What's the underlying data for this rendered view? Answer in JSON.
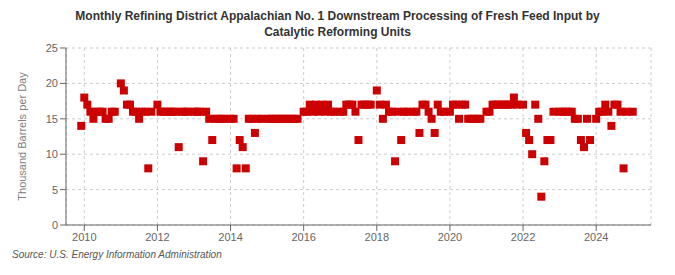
{
  "chart_data": {
    "type": "scatter",
    "title": "Monthly Refining District Appalachian No. 1 Downstream Processing of Fresh Feed Input by\nCatalytic Reforming Units",
    "ylabel": "Thousand Barrels per Day",
    "annotations": [
      "Source: U.S. Energy Information Administration"
    ],
    "color": "#cc0000",
    "marker": "square",
    "grid": true,
    "xlim": [
      2009.5,
      2025.5
    ],
    "xticks": [
      2010,
      2012,
      2014,
      2016,
      2018,
      2020,
      2022,
      2024
    ],
    "ylim": [
      0,
      25
    ],
    "yticks": [
      0,
      5,
      10,
      15,
      20,
      25
    ],
    "x": [
      2009.917,
      2010.0,
      2010.083,
      2010.167,
      2010.25,
      2010.333,
      2010.417,
      2010.5,
      2010.583,
      2010.667,
      2010.75,
      2010.833,
      2011.0,
      2011.083,
      2011.167,
      2011.25,
      2011.333,
      2011.417,
      2011.5,
      2011.583,
      2011.667,
      2011.75,
      2011.833,
      2012.0,
      2012.083,
      2012.167,
      2012.25,
      2012.333,
      2012.417,
      2012.5,
      2012.583,
      2012.667,
      2012.75,
      2012.833,
      2013.0,
      2013.083,
      2013.167,
      2013.25,
      2013.333,
      2013.417,
      2013.5,
      2013.583,
      2013.667,
      2013.75,
      2013.833,
      2014.0,
      2014.083,
      2014.167,
      2014.25,
      2014.333,
      2014.417,
      2014.5,
      2014.583,
      2014.667,
      2014.75,
      2014.833,
      2015.0,
      2015.083,
      2015.167,
      2015.25,
      2015.333,
      2015.417,
      2015.5,
      2015.583,
      2015.667,
      2015.75,
      2015.833,
      2016.0,
      2016.083,
      2016.167,
      2016.25,
      2016.333,
      2016.417,
      2016.5,
      2016.583,
      2016.667,
      2016.75,
      2016.833,
      2017.0,
      2017.083,
      2017.167,
      2017.25,
      2017.333,
      2017.417,
      2017.5,
      2017.583,
      2017.667,
      2017.75,
      2017.833,
      2018.0,
      2018.083,
      2018.167,
      2018.25,
      2018.333,
      2018.417,
      2018.5,
      2018.583,
      2018.667,
      2018.75,
      2018.833,
      2019.0,
      2019.083,
      2019.167,
      2019.25,
      2019.333,
      2019.417,
      2019.5,
      2019.583,
      2019.667,
      2019.75,
      2019.833,
      2020.0,
      2020.083,
      2020.167,
      2020.25,
      2020.333,
      2020.417,
      2020.5,
      2020.583,
      2020.667,
      2020.75,
      2020.833,
      2021.0,
      2021.083,
      2021.167,
      2021.25,
      2021.333,
      2021.417,
      2021.5,
      2021.583,
      2021.667,
      2021.75,
      2021.833,
      2022.0,
      2022.083,
      2022.167,
      2022.25,
      2022.333,
      2022.417,
      2022.5,
      2022.583,
      2022.667,
      2022.75,
      2022.833,
      2023.0,
      2023.083,
      2023.167,
      2023.25,
      2023.333,
      2023.417,
      2023.5,
      2023.583,
      2023.667,
      2023.75,
      2023.833,
      2024.0,
      2024.083,
      2024.167,
      2024.25,
      2024.333,
      2024.417,
      2024.5,
      2024.583,
      2024.667,
      2024.75,
      2024.833,
      2025.0
    ],
    "values": [
      14,
      18,
      17,
      16,
      15,
      16,
      16,
      16,
      15,
      15,
      16,
      16,
      20,
      19,
      17,
      17,
      16,
      16,
      15,
      16,
      16,
      8,
      16,
      17,
      16,
      16,
      16,
      16,
      16,
      16,
      11,
      16,
      16,
      16,
      16,
      16,
      16,
      9,
      16,
      15,
      12,
      15,
      15,
      15,
      15,
      15,
      15,
      8,
      12,
      11,
      8,
      15,
      15,
      13,
      15,
      15,
      15,
      15,
      15,
      15,
      15,
      15,
      15,
      15,
      15,
      15,
      15,
      16,
      16,
      17,
      16,
      17,
      16,
      17,
      16,
      17,
      16,
      16,
      16,
      16,
      17,
      17,
      17,
      16,
      12,
      17,
      17,
      17,
      17,
      19,
      17,
      15,
      17,
      16,
      16,
      9,
      16,
      12,
      16,
      16,
      16,
      16,
      13,
      17,
      17,
      16,
      15,
      13,
      17,
      16,
      16,
      16,
      17,
      17,
      15,
      17,
      17,
      15,
      15,
      15,
      15,
      15,
      16,
      16,
      17,
      17,
      17,
      17,
      17,
      17,
      17,
      18,
      17,
      17,
      13,
      12,
      10,
      17,
      15,
      4,
      9,
      12,
      12,
      16,
      16,
      16,
      16,
      16,
      16,
      15,
      15,
      12,
      11,
      15,
      12,
      15,
      16,
      16,
      17,
      16,
      14,
      17,
      17,
      16,
      8,
      16,
      16
    ]
  }
}
